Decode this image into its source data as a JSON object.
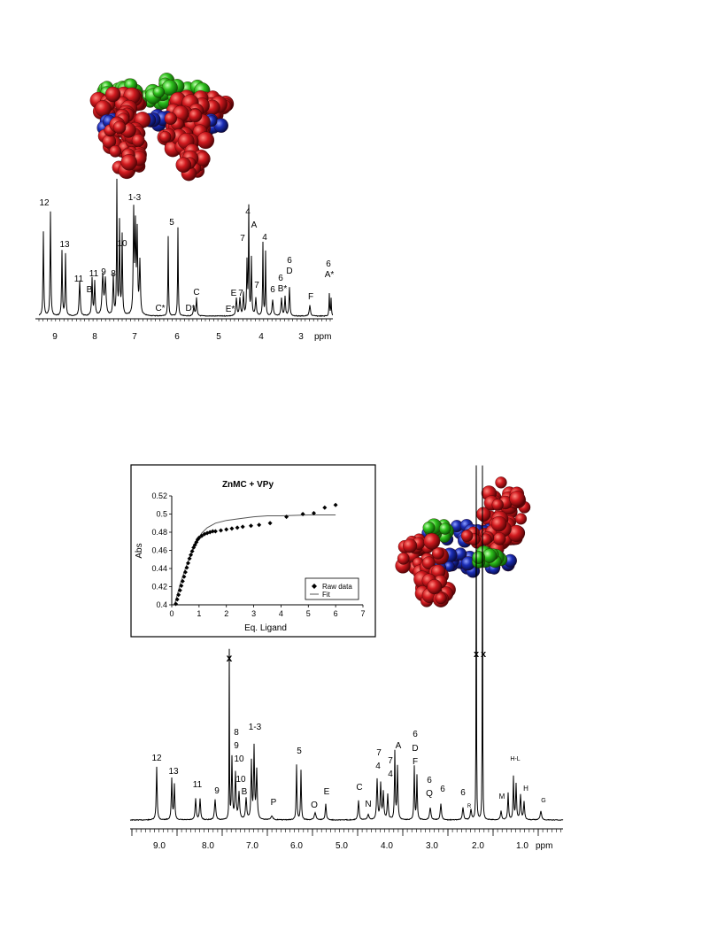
{
  "colors": {
    "atoms_red": "#c0141a",
    "atoms_blue": "#1b2db5",
    "atoms_green": "#2fc21e",
    "trace": "#000000"
  },
  "spectrum_top": {
    "axis_unit": "ppm",
    "axis_ticks": [
      "9",
      "8",
      "7",
      "6",
      "5",
      "4",
      "3"
    ],
    "peak_labels": [
      "12",
      "13",
      "11",
      "11",
      "B",
      "9",
      "8",
      "10",
      "1-3",
      "5",
      "C*",
      "D*",
      "C",
      "E",
      "7",
      "E*",
      "4",
      "A",
      "7",
      "7",
      "4",
      "6",
      "6",
      "B*",
      "6",
      "D",
      "F",
      "6",
      "A*"
    ]
  },
  "inset": {
    "title": "ZnMC + VPy",
    "ylabel": "Abs",
    "xlabel": "Eq. Ligand",
    "legend": [
      "Raw data",
      "Fit"
    ]
  },
  "spectrum_bottom": {
    "axis_unit": "ppm",
    "axis_ticks": [
      "9.0",
      "8.0",
      "7.0",
      "6.0",
      "5.0",
      "4.0",
      "3.0",
      "2.0",
      "1.0"
    ],
    "solvent_marks": [
      "x",
      "x",
      "x"
    ],
    "peak_labels": [
      "12",
      "13",
      "11",
      "9",
      "8",
      "9",
      "10",
      "10",
      "B",
      "1-3",
      "P",
      "5",
      "O",
      "E",
      "C",
      "N",
      "7",
      "4",
      "7",
      "4",
      "A",
      "6",
      "D",
      "F",
      "6",
      "Q",
      "6",
      "6",
      "R",
      "M",
      "H-L",
      "H",
      "G"
    ]
  },
  "chart_data": {
    "type": "scatter",
    "title": "ZnMC + VPy",
    "xlabel": "Eq. Ligand",
    "ylabel": "Abs",
    "xlim": [
      0,
      7
    ],
    "ylim": [
      0.4,
      0.52
    ],
    "x_ticks": [
      0,
      1,
      2,
      3,
      4,
      5,
      6,
      7
    ],
    "y_ticks": [
      0.4,
      0.42,
      0.44,
      0.46,
      0.48,
      0.5,
      0.52
    ],
    "legend_position": "bottom-right",
    "series": [
      {
        "name": "Raw data",
        "x": [
          0.15,
          0.2,
          0.25,
          0.3,
          0.35,
          0.4,
          0.45,
          0.5,
          0.55,
          0.6,
          0.65,
          0.7,
          0.75,
          0.8,
          0.85,
          0.9,
          0.95,
          1.0,
          1.1,
          1.2,
          1.3,
          1.4,
          1.5,
          1.6,
          1.8,
          2.0,
          2.2,
          2.4,
          2.6,
          2.9,
          3.2,
          3.6,
          4.2,
          4.8,
          5.2,
          5.6,
          6.0
        ],
        "y": [
          0.401,
          0.406,
          0.411,
          0.416,
          0.421,
          0.426,
          0.431,
          0.436,
          0.441,
          0.446,
          0.451,
          0.455,
          0.459,
          0.463,
          0.466,
          0.469,
          0.472,
          0.474,
          0.476,
          0.478,
          0.479,
          0.48,
          0.481,
          0.481,
          0.482,
          0.483,
          0.484,
          0.485,
          0.486,
          0.487,
          0.488,
          0.49,
          0.497,
          0.5,
          0.501,
          0.507,
          0.51
        ]
      },
      {
        "name": "Fit",
        "x": [
          0.1,
          0.3,
          0.5,
          0.7,
          0.9,
          1.1,
          1.3,
          1.6,
          2.0,
          2.5,
          3.0,
          3.5,
          4.0,
          5.0,
          6.0
        ],
        "y": [
          0.4,
          0.422,
          0.44,
          0.456,
          0.47,
          0.479,
          0.485,
          0.49,
          0.493,
          0.495,
          0.497,
          0.498,
          0.498,
          0.499,
          0.499
        ]
      }
    ]
  }
}
